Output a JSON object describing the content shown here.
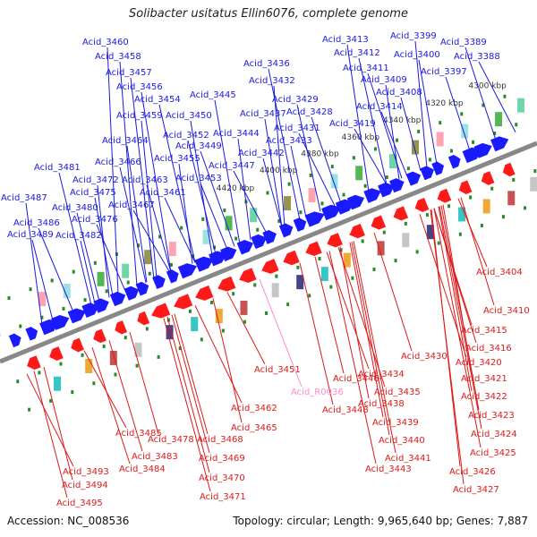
{
  "title": "Solibacter usitatus Ellin6076, complete genome",
  "footer": {
    "accession": "Accession: NC_008536",
    "meta": "Topology: circular; Length: 9,965,640 bp; Genes: 7,887"
  },
  "colors": {
    "forward": "#1a1aff",
    "reverse": "#ff1a1a",
    "rna": "#ff88cc",
    "axis": "#888888",
    "tick": "#2a8a2a"
  },
  "kbp_ticks": [
    "4300 kbp",
    "4320 kbp",
    "4340 kbp",
    "4360 kbp",
    "4380 kbp",
    "4400 kbp",
    "4420 kbp"
  ],
  "top_labels": [
    "Acid_3460",
    "Acid_3458",
    "Acid_3457",
    "Acid_3456",
    "Acid_3454",
    "Acid_3459",
    "Acid_3450",
    "Acid_3452",
    "Acid_3449",
    "Acid_3455",
    "Acid_3464",
    "Acid_3466",
    "Acid_3481",
    "Acid_3472",
    "Acid_3475",
    "Acid_3463",
    "Acid_3461",
    "Acid_3467",
    "Acid_3487",
    "Acid_3480",
    "Acid_3476",
    "Acid_3486",
    "Acid_3482",
    "Acid_3489",
    "Acid_3453",
    "Acid_3447",
    "Acid_3444",
    "Acid_3442",
    "Acid_3445",
    "Acid_3436",
    "Acid_3432",
    "Acid_3437",
    "Acid_3429",
    "Acid_3428",
    "Acid_3431",
    "Acid_3433",
    "Acid_3413",
    "Acid_3412",
    "Acid_3411",
    "Acid_3409",
    "Acid_3408",
    "Acid_3414",
    "Acid_3419",
    "Acid_3399",
    "Acid_3400",
    "Acid_3397",
    "Acid_3389",
    "Acid_3388"
  ],
  "bottom_labels": [
    "Acid_3404",
    "Acid_3410",
    "Acid_3415",
    "Acid_3416",
    "Acid_3420",
    "Acid_3421",
    "Acid_3422",
    "Acid_3423",
    "Acid_3424",
    "Acid_3425",
    "Acid_3426",
    "Acid_3427",
    "Acid_3430",
    "Acid_3434",
    "Acid_3435",
    "Acid_3438",
    "Acid_3439",
    "Acid_3440",
    "Acid_3441",
    "Acid_3443",
    "Acid_3446",
    "Acid_3448",
    "Acid_3451",
    "Acid_R0036",
    "Acid_3462",
    "Acid_3465",
    "Acid_3468",
    "Acid_3469",
    "Acid_3470",
    "Acid_3471",
    "Acid_3478",
    "Acid_3483",
    "Acid_3484",
    "Acid_3485",
    "Acid_3493",
    "Acid_3494",
    "Acid_3495"
  ]
}
